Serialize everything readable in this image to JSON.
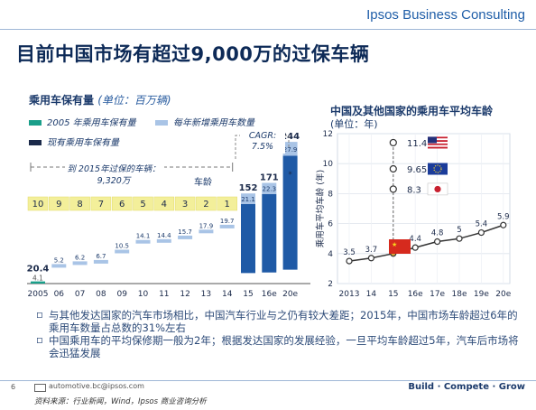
{
  "header": {
    "brand": "Ipsos Business Consulting",
    "title": "目前中国市场有超过9,000万的过保车辆"
  },
  "left_chart": {
    "title": "乘用车保有量",
    "unit": "(单位：百万辆)",
    "legend": {
      "base_2005": "2005 年乘用车保有量",
      "new_annual": "每年新增乘用车数量",
      "current_stock": "现有乘用车保有量"
    },
    "age_label": "车龄",
    "bracket_label_line1": "到 2015年过保的车辆：",
    "bracket_label_line2": "9,320万",
    "cagr_label_line1": "CAGR:",
    "cagr_label_line2": "7.5%",
    "cagr_star": "*",
    "colors": {
      "base": "#1a9f8a",
      "new": "#a9c4e6",
      "stock": "#1f5aa6",
      "age_box": "#f3ef9a"
    }
  },
  "right_chart": {
    "title": "中国及其他国家的乘用车平均车龄",
    "subtitle": "(单位：年)",
    "ylabel": "乘用车平均车龄 (年)",
    "flags": [
      "us-flag",
      "eu-flag",
      "japan-flag",
      "china-flag"
    ]
  },
  "chart_data": [
    {
      "type": "bar",
      "title": "乘用车保有量",
      "ylabel": "(单位：百万辆)",
      "categories": [
        "2005",
        "06",
        "07",
        "08",
        "09",
        "10",
        "11",
        "12",
        "13",
        "14",
        "15",
        "16e",
        "20e"
      ],
      "series": [
        {
          "name": "2005 年乘用车保有量",
          "values": [
            4.1,
            null,
            null,
            null,
            null,
            null,
            null,
            null,
            null,
            null,
            null,
            null,
            null
          ]
        },
        {
          "name": "每年新增乘用车数量",
          "values": [
            null,
            5.2,
            6.2,
            6.7,
            10.5,
            14.1,
            14.4,
            15.7,
            17.9,
            19.7,
            21.1,
            22.3,
            27.9
          ]
        },
        {
          "name": "现有乘用车保有量",
          "values": [
            20.4,
            null,
            null,
            null,
            null,
            null,
            null,
            null,
            null,
            null,
            152,
            171,
            244
          ]
        }
      ],
      "vehicle_age": [
        10,
        9,
        8,
        7,
        6,
        5,
        4,
        3,
        2,
        1
      ],
      "annotations": [
        "到 2015年过保的车辆：9,320万",
        "CAGR: 7.5%"
      ]
    },
    {
      "type": "line",
      "title": "中国及其他国家的乘用车平均车龄",
      "ylabel": "乘用车平均车龄 (年)",
      "x": [
        "2013",
        "14",
        "15",
        "16e",
        "17e",
        "18e",
        "19e",
        "20e"
      ],
      "series": [
        {
          "values": [
            3.5,
            3.7,
            4.0,
            4.4,
            4.8,
            5.0,
            5.4,
            5.9
          ]
        }
      ],
      "reference_2015": [
        {
          "flag": "us-flag",
          "value": 11.4,
          "label": "11.4"
        },
        {
          "flag": "eu-flag",
          "value": 9.65,
          "label": "9.65"
        },
        {
          "flag": "japan-flag",
          "value": 8.3,
          "label": "8.3"
        }
      ],
      "ylim": [
        2,
        12
      ],
      "yticks": [
        2,
        4,
        6,
        8,
        10,
        12
      ],
      "grid": true
    }
  ],
  "bullets": [
    "与其他发达国家的汽车市场相比，中国汽车行业与之仍有较大差距；2015年，中国市场车龄超过6年的乘用车数量占总数的31%左右",
    "中国乘用车的平均保修期一般为2年；根据发达国家的发展经验，一旦平均车龄超过5年，汽车后市场将会迅猛发展"
  ],
  "footer": {
    "page": "6",
    "email": "automotive.bc@ipsos.com",
    "source": "资料来源：行业新闻，Wind，Ipsos 商业咨询分析",
    "tagline": "Build · Compete · Grow"
  }
}
